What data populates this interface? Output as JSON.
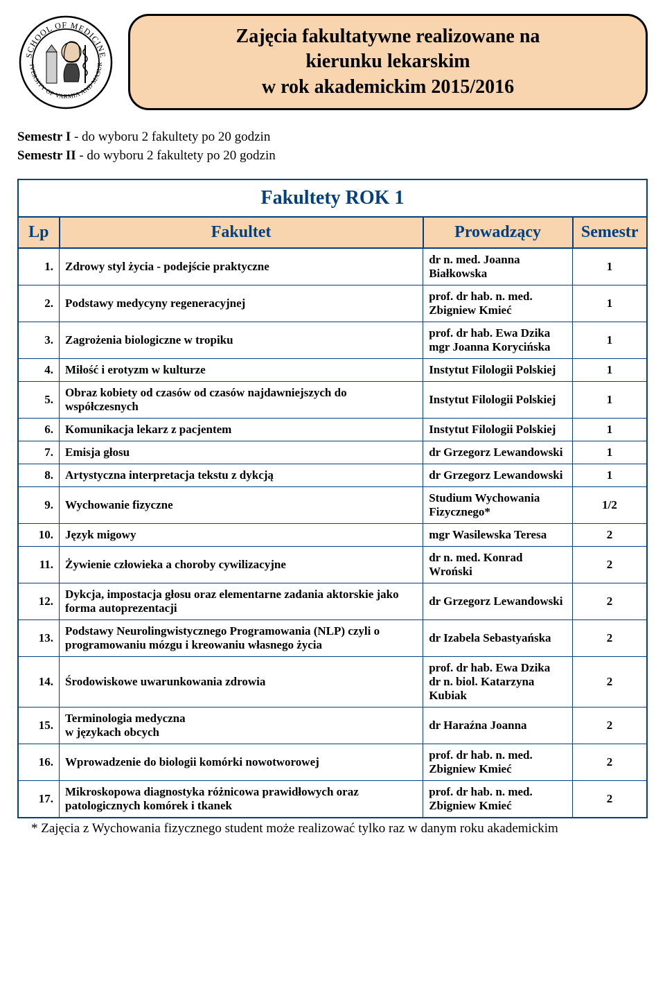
{
  "banner": {
    "line1": "Zajęcia fakultatywne realizowane na",
    "line2": "kierunku lekarskim",
    "line3": "w rok akademickim 2015/2016",
    "bg_color": "#f8d5af",
    "border_color": "#000000",
    "font_size": 28
  },
  "intro": {
    "sem1_bold": "Semestr I",
    "sem1_rest": " - do wyboru 2 fakultety po 20 godzin",
    "sem2_bold": "Semestr II",
    "sem2_rest": " - do wyboru 2 fakultety po 20 godzin"
  },
  "table": {
    "year_header": "Fakultety  ROK 1",
    "columns": {
      "lp": "Lp",
      "fakultet": "Fakultet",
      "prowadzacy": "Prowadzący",
      "semestr": "Semestr"
    },
    "header_bg": "#f8d5af",
    "header_fg": "#004080",
    "border_color": "#004080",
    "rows": [
      {
        "lp": "1.",
        "fakultet": "Zdrowy styl życia - podejście praktyczne",
        "prowadzacy": "dr n. med. Joanna Białkowska",
        "semestr": "1"
      },
      {
        "lp": "2.",
        "fakultet": "Podstawy medycyny regeneracyjnej",
        "prowadzacy": "prof. dr hab. n. med. Zbigniew Kmieć",
        "semestr": "1"
      },
      {
        "lp": "3.",
        "fakultet": "Zagrożenia biologiczne w tropiku",
        "prowadzacy": "prof. dr hab. Ewa Dzika\nmgr Joanna Korycińska",
        "semestr": "1"
      },
      {
        "lp": "4.",
        "fakultet": "Miłość i erotyzm w kulturze",
        "prowadzacy": "Instytut Filologii Polskiej",
        "semestr": "1"
      },
      {
        "lp": "5.",
        "fakultet": "Obraz kobiety od czasów od czasów najdawniejszych do współczesnych",
        "prowadzacy": "Instytut Filologii Polskiej",
        "semestr": "1"
      },
      {
        "lp": "6.",
        "fakultet": "Komunikacja lekarz z pacjentem",
        "prowadzacy": "Instytut Filologii Polskiej",
        "semestr": "1"
      },
      {
        "lp": "7.",
        "fakultet": "Emisja głosu",
        "prowadzacy": "dr Grzegorz Lewandowski",
        "semestr": "1"
      },
      {
        "lp": "8.",
        "fakultet": "Artystyczna interpretacja tekstu z dykcją",
        "prowadzacy": "dr Grzegorz Lewandowski",
        "semestr": "1"
      },
      {
        "lp": "9.",
        "fakultet": "Wychowanie fizyczne",
        "prowadzacy": "Studium Wychowania Fizycznego*",
        "semestr": "1/2"
      },
      {
        "lp": "10.",
        "fakultet": "Język migowy",
        "prowadzacy": "mgr Wasilewska Teresa",
        "semestr": "2"
      },
      {
        "lp": "11.",
        "fakultet": "Żywienie człowieka a choroby cywilizacyjne",
        "prowadzacy": "dr n. med. Konrad Wroński",
        "semestr": "2"
      },
      {
        "lp": "12.",
        "fakultet": "Dykcja, impostacja głosu oraz elementarne zadania aktorskie jako forma autoprezentacji",
        "prowadzacy": "dr Grzegorz Lewandowski",
        "semestr": "2"
      },
      {
        "lp": "13.",
        "fakultet": "Podstawy Neurolingwistycznego Programowania (NLP) czyli o programowaniu mózgu i kreowaniu własnego życia",
        "prowadzacy": "dr Izabela Sebastyańska",
        "semestr": "2"
      },
      {
        "lp": "14.",
        "fakultet": "Środowiskowe uwarunkowania zdrowia",
        "prowadzacy": "prof. dr hab. Ewa Dzika\ndr n. biol. Katarzyna Kubiak",
        "semestr": "2"
      },
      {
        "lp": "15.",
        "fakultet": "Terminologia medyczna\nw językach obcych",
        "prowadzacy": "dr Haraźna Joanna",
        "semestr": "2"
      },
      {
        "lp": "16.",
        "fakultet": "Wprowadzenie do biologii komórki nowotworowej",
        "prowadzacy": "prof. dr hab. n. med. Zbigniew Kmieć",
        "semestr": "2"
      },
      {
        "lp": "17.",
        "fakultet": "Mikroskopowa diagnostyka różnicowa prawidłowych oraz patologicznych komórek i  tkanek",
        "prowadzacy": "prof. dr hab. n. med. Zbigniew Kmieć",
        "semestr": "2"
      }
    ]
  },
  "footnote": "* Zajęcia  z Wychowania fizycznego student może realizować tylko raz w danym roku akademickim",
  "colors": {
    "page_bg": "#ffffff",
    "text": "#000000"
  }
}
